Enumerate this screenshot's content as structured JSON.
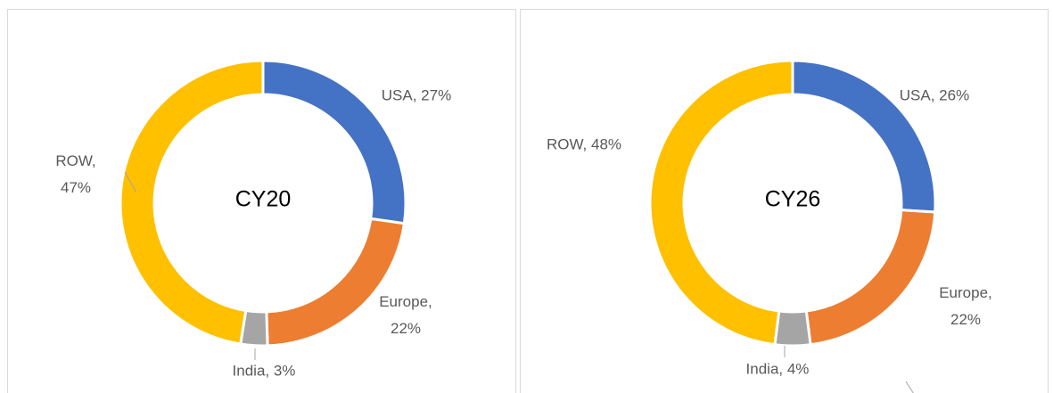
{
  "chart_data": [
    {
      "type": "pie",
      "title": "CY20",
      "categories": [
        "USA",
        "Europe",
        "India",
        "ROW"
      ],
      "values": [
        27,
        22,
        3,
        47
      ],
      "value_labels": [
        "USA, 27%",
        "Europe, 22%",
        "India, 3%",
        "ROW, 47%"
      ],
      "colors": [
        "#4472c4",
        "#ed7d31",
        "#a5a5a5",
        "#ffc000"
      ]
    },
    {
      "type": "pie",
      "title": "CY26",
      "categories": [
        "USA",
        "Europe",
        "India",
        "ROW"
      ],
      "values": [
        26,
        22,
        4,
        48
      ],
      "value_labels": [
        "USA, 26%",
        "Europe, 22%",
        "India, 4%",
        "ROW, 48%"
      ],
      "colors": [
        "#4472c4",
        "#ed7d31",
        "#a5a5a5",
        "#ffc000"
      ]
    }
  ]
}
